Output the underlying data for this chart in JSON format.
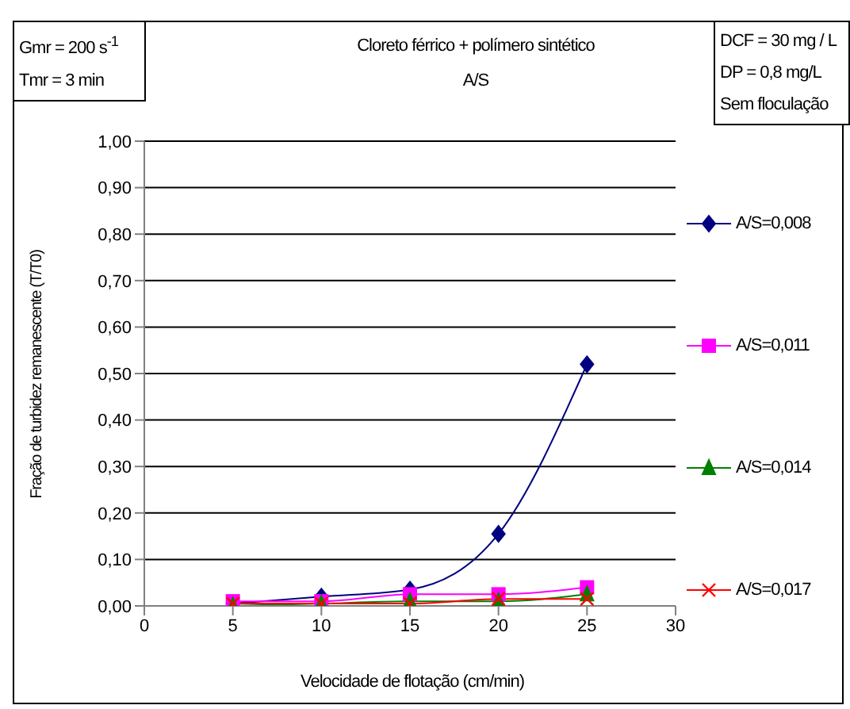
{
  "chart_data": {
    "type": "line",
    "title": "Cloreto férrico + polímero sintético",
    "subtitle": "A/S",
    "xlabel": "Velocidade de flotação (cm/min)",
    "ylabel": "Fração de turbidez remanescente (T/T0)",
    "annotations": [
      "Gmr = 200 s$^{-1}$",
      "Tmr = 3 min",
      "DCF = 30 mg / L",
      "DP = 0,8 mg/L",
      "Sem floculação"
    ],
    "x": [
      5,
      10,
      15,
      20,
      25
    ],
    "series": [
      {
        "name": "A/S=0,008",
        "color": "#000080",
        "marker": "diamond",
        "values": [
          0.005,
          0.02,
          0.035,
          0.155,
          0.52
        ]
      },
      {
        "name": "A/S=0,011",
        "color": "#ff00ff",
        "marker": "square",
        "values": [
          0.01,
          0.01,
          0.025,
          0.025,
          0.04
        ]
      },
      {
        "name": "A/S=0,014",
        "color": "#008000",
        "marker": "triangle",
        "values": [
          0,
          0.005,
          0.01,
          0.01,
          0.025
        ]
      },
      {
        "name": "A/S=0,017",
        "color": "#ff0000",
        "marker": "cross",
        "values": [
          0.005,
          0.005,
          0.005,
          0.015,
          0.015
        ]
      }
    ],
    "xlim": [
      0,
      30
    ],
    "xticks": [
      0,
      5,
      10,
      15,
      20,
      25,
      30
    ],
    "ylim": [
      0,
      1
    ],
    "yticks": [
      {
        "value": 0,
        "label": "0,00"
      },
      {
        "value": 0.1,
        "label": "0,10"
      },
      {
        "value": 0.2,
        "label": "0,20"
      },
      {
        "value": 0.3,
        "label": "0,30"
      },
      {
        "value": 0.4,
        "label": "0,40"
      },
      {
        "value": 0.5,
        "label": "0,50"
      },
      {
        "value": 0.6,
        "label": "0,60"
      },
      {
        "value": 0.7,
        "label": "0,70"
      },
      {
        "value": 0.8,
        "label": "0,80"
      },
      {
        "value": 0.9,
        "label": "0,90"
      },
      {
        "value": 1,
        "label": "1,00"
      }
    ],
    "grid": "y",
    "legend": "right"
  }
}
